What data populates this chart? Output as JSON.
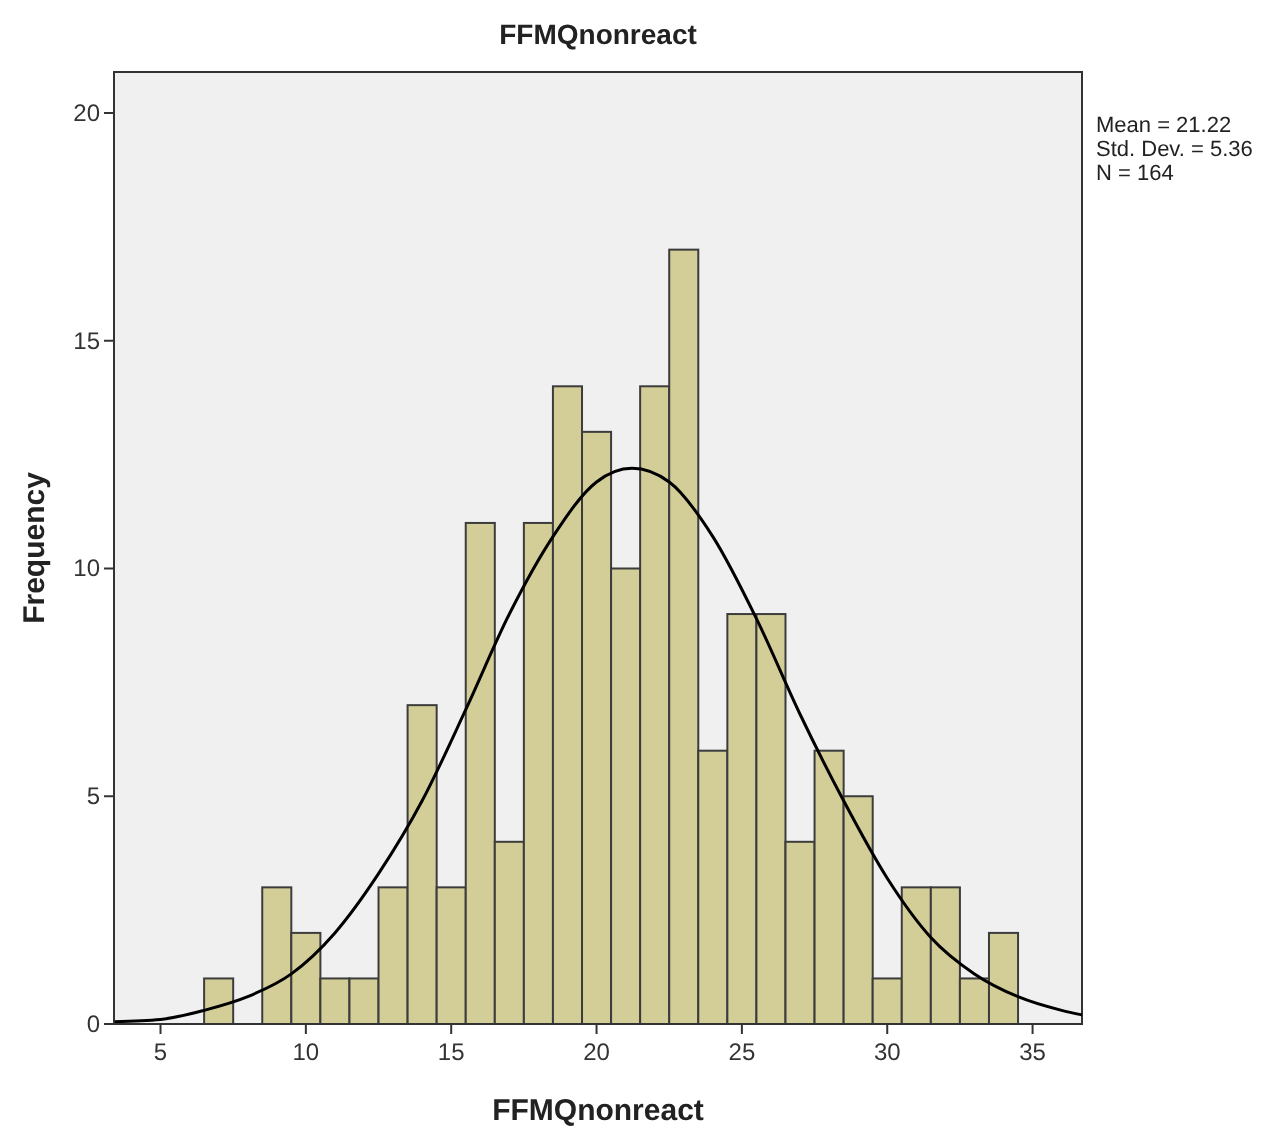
{
  "chart_data": {
    "type": "histogram",
    "title": "FFMQnonreact",
    "xlabel": "FFMQnonreact",
    "ylabel": "Frequency",
    "bins": [
      6.5,
      7.5,
      8.5,
      9.5,
      10.5,
      11.5,
      12.5,
      13.5,
      14.5,
      15.5,
      16.5,
      17.5,
      18.5,
      19.5,
      20.5,
      21.5,
      22.5,
      23.5,
      24.5,
      25.5,
      26.5,
      27.5,
      28.5,
      29.5,
      30.5,
      31.5,
      32.5,
      33.5,
      34.5
    ],
    "values": [
      1,
      0,
      3,
      2,
      1,
      1,
      3,
      7,
      3,
      11,
      4,
      11,
      14,
      13,
      10,
      14,
      17,
      6,
      9,
      9,
      4,
      6,
      5,
      1,
      3,
      3,
      1,
      2
    ],
    "color": "#d3ce97",
    "series": [
      {
        "type": "line",
        "color": "#000000",
        "x": [
          3.4,
          5,
          6.5,
          8,
          9.5,
          11,
          12.5,
          14,
          15.5,
          17,
          18.5,
          20,
          21.22,
          22.5,
          24,
          25.5,
          27,
          28.5,
          30,
          31.5,
          33,
          34.5,
          36,
          36.7
        ],
        "values": [
          0.05,
          0.1,
          0.3,
          0.6,
          1.1,
          2.0,
          3.3,
          4.9,
          6.9,
          9.0,
          10.7,
          11.9,
          12.2,
          11.9,
          10.7,
          8.9,
          6.8,
          4.9,
          3.2,
          1.9,
          1.1,
          0.6,
          0.3,
          0.2
        ]
      }
    ],
    "xlim": [
      3.4,
      36.7
    ],
    "xticks": [
      5,
      10,
      15,
      20,
      25,
      30,
      35
    ],
    "ylim": [
      0,
      20.9
    ],
    "yticks": [
      0,
      5,
      10,
      15,
      20
    ],
    "grid": false,
    "annotations": [
      "Mean = 21.22",
      "Std. Dev. = 5.36",
      "N = 164"
    ]
  }
}
